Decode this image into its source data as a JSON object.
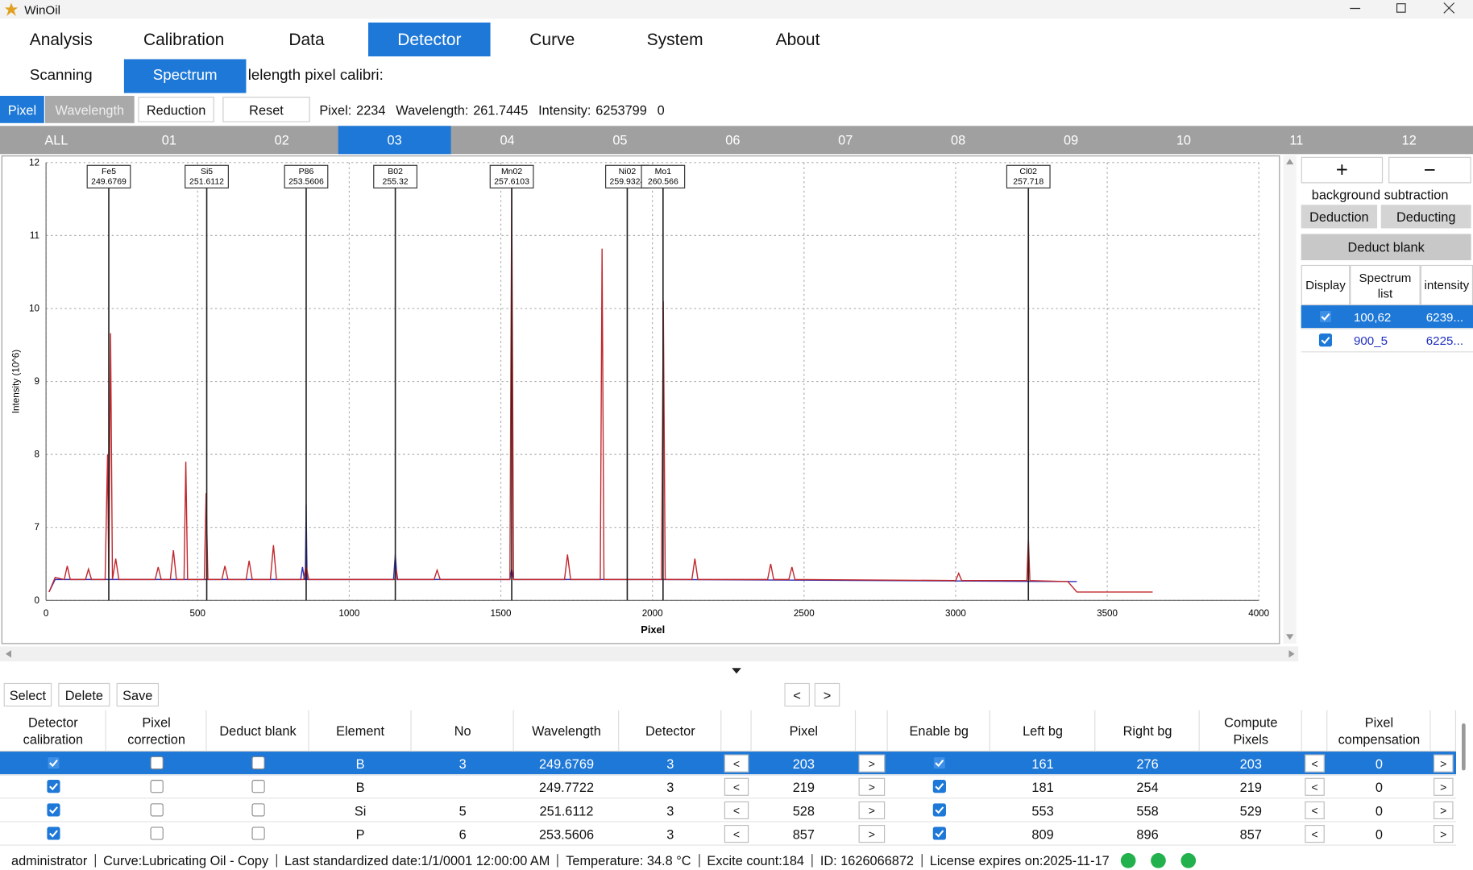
{
  "window": {
    "title": "WinOil"
  },
  "menu": {
    "items": [
      "Analysis",
      "Calibration",
      "Data",
      "Detector",
      "Curve",
      "System",
      "About"
    ],
    "selected": 3
  },
  "subtabs": {
    "items": [
      "Scanning",
      "Spectrum"
    ],
    "selected": 1,
    "caption": "lelength pixel calibri:"
  },
  "toolbar": {
    "modes": [
      "Pixel",
      "Wavelength"
    ],
    "buttons": [
      "Reduction",
      "Reset"
    ],
    "pixel_label": "Pixel:",
    "pixel": 2234,
    "wavelength_label": "Wavelength:",
    "wavelength": 261.7445,
    "intensity_label": "Intensity:",
    "intensity": 6253799,
    "extra": 0
  },
  "detector_tabs": {
    "items": [
      "ALL",
      "01",
      "02",
      "03",
      "04",
      "05",
      "06",
      "07",
      "08",
      "09",
      "10",
      "11",
      "12"
    ],
    "selected": 3
  },
  "chart_data": {
    "type": "line",
    "x_label": "Pixel",
    "y_label": "Intensity (10^6)",
    "xlim": [
      0,
      4000
    ],
    "xticks": [
      0,
      500,
      1000,
      1500,
      2000,
      2500,
      3000,
      3500,
      4000
    ],
    "ylim": [
      0,
      12
    ],
    "yticks": [
      0,
      7,
      8,
      9,
      10,
      11,
      12
    ],
    "y_axis_break": [
      0,
      7
    ],
    "grid": true,
    "series": [
      {
        "name": "900_5",
        "color": "#2b2fb8",
        "x": [
          10,
          30,
          840,
          846,
          852,
          855,
          858,
          861,
          1146,
          1152,
          1158,
          1530,
          1536,
          1542,
          2036,
          3400
        ],
        "values": [
          0.8,
          2.0,
          2.0,
          3.2,
          2.0,
          2.0,
          7.31,
          2.0,
          2.0,
          4.4,
          2.0,
          2.0,
          3.0,
          2.0,
          2.0,
          1.8
        ]
      },
      {
        "name": "100,62",
        "color": "#c0282d",
        "x": [
          10,
          30,
          60,
          70,
          80,
          130,
          140,
          150,
          195,
          203,
          207,
          213,
          219,
          230,
          240,
          360,
          370,
          380,
          410,
          420,
          430,
          455,
          461,
          467,
          522,
          528,
          534,
          580,
          590,
          600,
          660,
          670,
          680,
          740,
          750,
          760,
          850,
          858,
          866,
          1150,
          1155,
          1160,
          1280,
          1290,
          1300,
          1530,
          1536,
          1542,
          1710,
          1720,
          1730,
          1828,
          1834,
          1840,
          2030,
          2036,
          2042,
          2130,
          2140,
          2150,
          2380,
          2390,
          2400,
          2450,
          2460,
          2470,
          3000,
          3010,
          3020,
          3235,
          3240,
          3245,
          3370,
          3400,
          3650
        ],
        "values": [
          0.8,
          2.2,
          2.0,
          3.3,
          2.0,
          2.0,
          3.0,
          2.0,
          2.0,
          8.0,
          2.0,
          9.66,
          2.0,
          4.0,
          2.0,
          2.0,
          3.2,
          2.0,
          2.0,
          4.8,
          2.0,
          2.0,
          7.9,
          2.0,
          2.0,
          7.47,
          2.0,
          2.0,
          3.3,
          2.0,
          2.0,
          3.8,
          2.0,
          2.0,
          5.3,
          2.0,
          2.0,
          3.4,
          2.0,
          2.0,
          3.0,
          2.0,
          2.0,
          2.9,
          2.0,
          2.0,
          11.65,
          2.0,
          2.0,
          4.4,
          2.0,
          2.0,
          10.82,
          2.0,
          2.0,
          10.1,
          2.0,
          2.0,
          4.0,
          2.0,
          2.0,
          3.5,
          2.0,
          2.0,
          3.2,
          2.0,
          1.9,
          2.6,
          1.9,
          1.9,
          6.0,
          1.9,
          1.8,
          0.8,
          0.8
        ]
      }
    ],
    "annotations": [
      {
        "name": "Fe5",
        "wavelength": 249.6769,
        "x": 207
      },
      {
        "name": "Si5",
        "wavelength": 251.6112,
        "x": 530
      },
      {
        "name": "P86",
        "wavelength": 253.5606,
        "x": 858
      },
      {
        "name": "B02",
        "wavelength": 255.32,
        "x": 1152
      },
      {
        "name": "Mn02",
        "wavelength": 257.6103,
        "x": 1536
      },
      {
        "name": "Ni02",
        "wavelength": 259.9324,
        "x": 1917
      },
      {
        "name": "Mo1",
        "wavelength": 260.566,
        "x": 2035
      },
      {
        "name": "Cl02",
        "wavelength": 257.718,
        "x": 3240
      }
    ]
  },
  "side_panel": {
    "add": "+",
    "remove": "−",
    "caption": "background subtraction",
    "buttons": [
      "Deduction",
      "Deducting"
    ],
    "deduct_blank": "Deduct blank",
    "headers": [
      "Display",
      "Spectrum list",
      "intensity"
    ],
    "rows": [
      {
        "display": true,
        "intensity": "6239..."
      },
      {
        "display": true,
        "intensity": "6225..."
      }
    ],
    "selected": 0
  },
  "table": {
    "buttons": [
      "Select",
      "Delete",
      "Save"
    ],
    "prev": "<",
    "next": ">",
    "headers": [
      "Detector calibration",
      "Pixel correction",
      "Deduct blank",
      "Element",
      "No",
      "Wavelength",
      "Detector",
      "Pixel",
      "Enable bg",
      "Left bg",
      "Right bg",
      "Compute Pixels",
      "Pixel compensation"
    ],
    "rows": [
      [
        true,
        false,
        false,
        "B",
        3,
        249.6769,
        3,
        203,
        true,
        161,
        276,
        203,
        0
      ],
      [
        true,
        false,
        false,
        "B",
        null,
        249.7722,
        3,
        219,
        true,
        181,
        254,
        219,
        0
      ],
      [
        true,
        false,
        false,
        "Si",
        5,
        251.6112,
        3,
        528,
        true,
        553,
        558,
        529,
        0
      ],
      [
        true,
        false,
        false,
        "P",
        6,
        253.5606,
        3,
        857,
        true,
        809,
        896,
        857,
        0
      ]
    ],
    "selected": 0
  },
  "status": {
    "items": [
      "administrator",
      "Curve:Lubricating Oil - Copy",
      "Last standardized date:1/1/0001 12:00:00 AM",
      "Temperature: 34.8 °C",
      "Excite count:184",
      "ID: 1626066872",
      "License expires on:2025-11-17"
    ]
  }
}
